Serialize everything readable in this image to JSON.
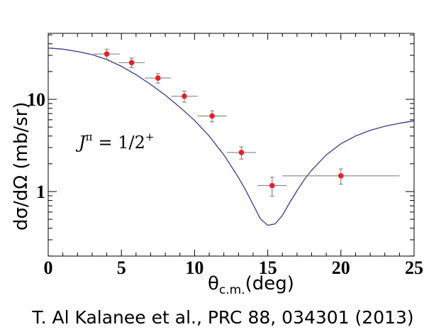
{
  "chart_data": {
    "type": "scatter",
    "x_unit_label": "(deg)",
    "x_symbol": "θ",
    "x_subscript": "c.m.",
    "ylabel": "dσ/dΩ (mb/sr)",
    "xlim": [
      0,
      25
    ],
    "ylim": [
      0.2,
      50
    ],
    "y_scale": "log",
    "x_major_ticks": [
      0,
      5,
      10,
      15,
      20,
      25
    ],
    "x_tick_labels": [
      "0",
      "5",
      "10",
      "15",
      "20",
      "25"
    ],
    "y_major_ticks": [
      1,
      10
    ],
    "y_tick_labels": [
      "1",
      "10"
    ],
    "grid": false,
    "annotation": {
      "base": "J",
      "superscript": "π",
      "rhs": "= 1/2",
      "rhs_superscript": "+"
    },
    "series": [
      {
        "kind": "points",
        "color": "#e8202a",
        "x": [
          4.0,
          5.7,
          7.5,
          9.3,
          11.2,
          13.2,
          15.3,
          20.0
        ],
        "y": [
          31.0,
          25.0,
          17.0,
          10.8,
          6.6,
          2.65,
          1.16,
          1.48
        ],
        "x_err": [
          0.9,
          0.9,
          0.9,
          0.9,
          1.0,
          1.0,
          1.0,
          4.0
        ],
        "y_err_low": [
          4.0,
          3.0,
          2.0,
          1.5,
          0.9,
          0.4,
          0.27,
          0.28
        ],
        "y_err_high": [
          4.0,
          3.0,
          2.0,
          1.5,
          0.9,
          0.4,
          0.27,
          0.28
        ]
      },
      {
        "kind": "curve",
        "color": "#3b3b8f",
        "x": [
          0,
          1,
          2,
          3,
          4,
          5,
          6,
          7,
          8,
          9,
          10,
          11,
          12,
          13,
          13.5,
          14,
          14.5,
          15,
          15.5,
          16,
          16.5,
          17,
          17.5,
          18,
          19,
          20,
          21,
          22,
          23,
          24,
          25
        ],
        "y": [
          36,
          35,
          33,
          30.5,
          27,
          22.8,
          18.5,
          14.5,
          11.1,
          8.2,
          5.9,
          4.0,
          2.5,
          1.42,
          1.03,
          0.72,
          0.505,
          0.43,
          0.445,
          0.55,
          0.76,
          1.02,
          1.35,
          1.7,
          2.5,
          3.3,
          4.0,
          4.6,
          5.1,
          5.5,
          5.85
        ]
      }
    ]
  },
  "caption": "T. Al Kalanee et al., PRC 88, 034301 (2013)"
}
